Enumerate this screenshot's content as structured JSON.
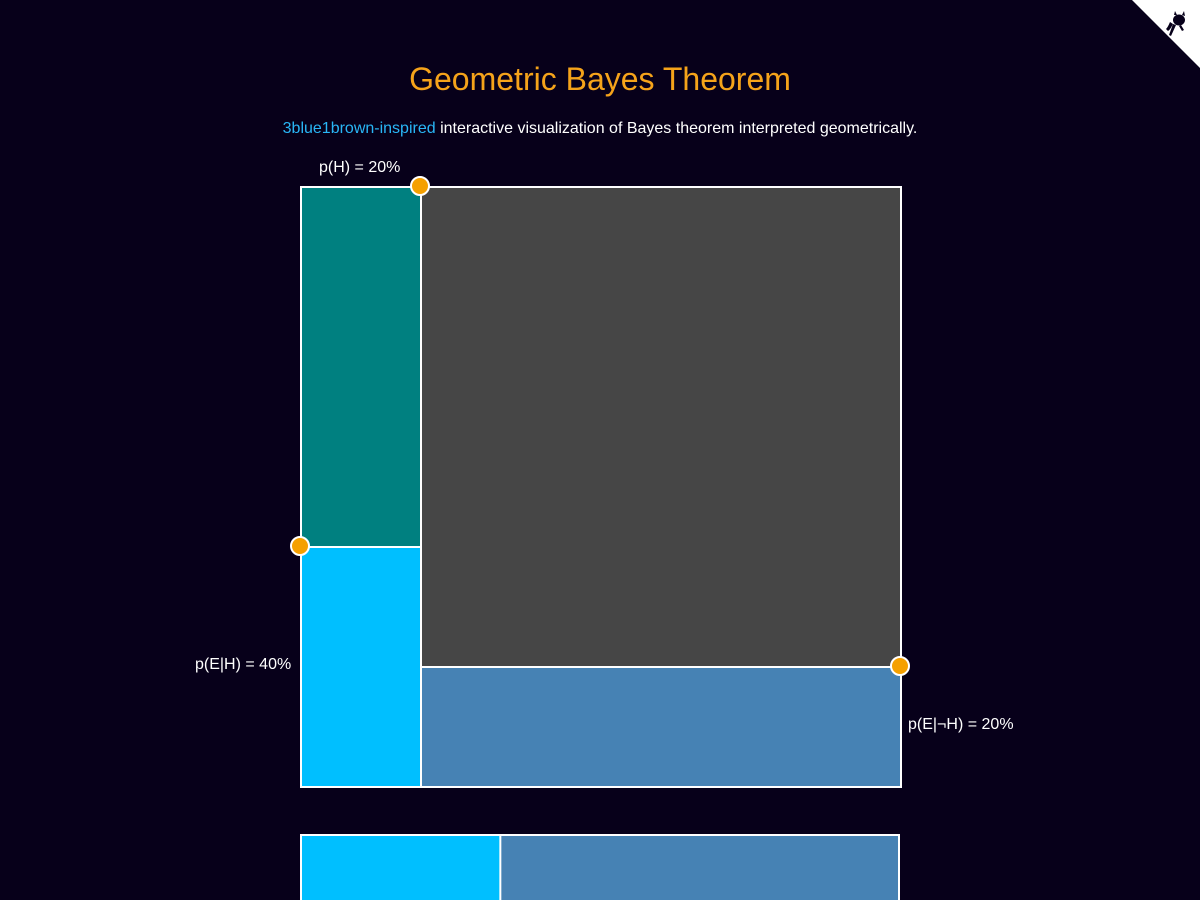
{
  "header": {
    "title": "Geometric Bayes Theorem",
    "subtitle_link": "3blue1brown-inspired",
    "subtitle_rest": " interactive visualization of Bayes theorem interpreted geometrically."
  },
  "labels": {
    "p_h": "p(H) = 20%",
    "p_e_given_h": "p(E|H) = 40%",
    "p_e_given_not_h": "p(E|¬H) = 20%"
  },
  "probabilities": {
    "p_h": 0.2,
    "p_e_given_h": 0.4,
    "p_e_given_not_h": 0.2
  },
  "colors": {
    "background": "#07001a",
    "title": "#f5a31a",
    "link": "#29b6f6",
    "h_not_e": "#008080",
    "h_and_e": "#00bfff",
    "not_h_not_e": "#464646",
    "not_h_and_e": "#4682b4",
    "handle": "#f5a000",
    "border": "#ffffff"
  },
  "icons": {
    "corner": "github-octocat-icon"
  }
}
